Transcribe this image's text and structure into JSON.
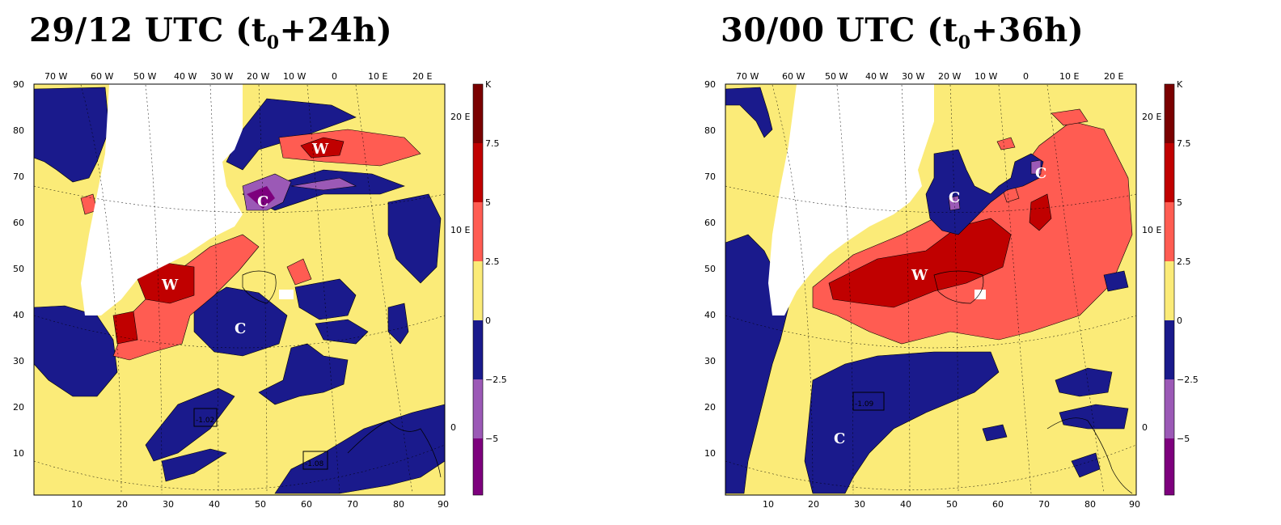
{
  "panels": [
    {
      "id": "left",
      "title_main": "29/12 UTC (t",
      "title_sub": "0",
      "title_tail": "+24h)",
      "top_lon_labels": [
        "70 W",
        "60 W",
        "50 W",
        "40 W",
        "30 W",
        "20 W",
        "10 W",
        "0",
        "10 E",
        "20 E"
      ],
      "left_lat_labels": [
        "90",
        "80",
        "70",
        "60",
        "50",
        "40",
        "30",
        "20",
        "10"
      ],
      "bottom_labels": [
        "10",
        "20",
        "30",
        "40",
        "50",
        "60",
        "70",
        "80",
        "90"
      ],
      "right_lon_labels": [
        "20 E",
        "10 E",
        "0"
      ],
      "centers": [
        {
          "type": "W",
          "lon": -26,
          "lat": 68
        },
        {
          "type": "W",
          "lon": -36,
          "lat": 51
        },
        {
          "type": "C",
          "lon": -18,
          "lat": 64
        },
        {
          "type": "C",
          "lon": -26,
          "lat": 55
        }
      ],
      "boxed_values": [
        "-1.02",
        "-1.08"
      ]
    },
    {
      "id": "right",
      "title_main": "30/00 UTC (t",
      "title_sub": "0",
      "title_tail": "+36h)",
      "top_lon_labels": [
        "70 W",
        "60 W",
        "50 W",
        "40 W",
        "30 W",
        "20 W",
        "10 W",
        "0",
        "10 E",
        "20 E"
      ],
      "left_lat_labels": [
        "90",
        "80",
        "70",
        "60",
        "50",
        "40",
        "30",
        "20",
        "10"
      ],
      "bottom_labels": [
        "10",
        "20",
        "30",
        "40",
        "50",
        "60",
        "70",
        "80",
        "90"
      ],
      "right_lon_labels": [
        "20 E",
        "10 E",
        "0"
      ],
      "centers": [
        {
          "type": "C",
          "lon": 0,
          "lat": 68
        },
        {
          "type": "C",
          "lon": -14,
          "lat": 64
        },
        {
          "type": "W",
          "lon": -20,
          "lat": 56
        },
        {
          "type": "C",
          "lon": -38,
          "lat": 44
        }
      ],
      "boxed_values": [
        "-1.09"
      ]
    }
  ],
  "colorbar": {
    "unit": "K",
    "ticks": [
      "7.5",
      "5",
      "2.5",
      "0",
      "−2.5",
      "−5"
    ],
    "colors": [
      "#7a0000",
      "#c00000",
      "#ff5c52",
      "#fbeb78",
      "#1a1a8c",
      "#9b59b6",
      "#7d007d"
    ]
  },
  "colors": {
    "warm_strong": "#c00000",
    "warm": "#ff5c52",
    "neutral": "#fbeb78",
    "cold": "#1a1a8c",
    "cold_strong": "#9b59b6"
  }
}
